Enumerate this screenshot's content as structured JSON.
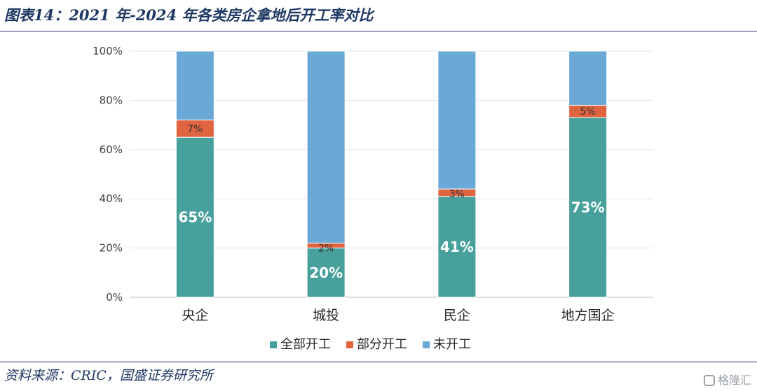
{
  "header": {
    "title": "图表14：2021 年-2024 年各类房企拿地后开工率对比"
  },
  "footer": {
    "source": "资料来源：CRIC，国盛证券研究所",
    "watermark": "格隆汇"
  },
  "colors": {
    "full": "#47a09b",
    "partial": "#e0643f",
    "none": "#6aa8d8"
  },
  "chart_data": {
    "type": "bar",
    "stacked": true,
    "categories": [
      "央企",
      "城投",
      "民企",
      "地方国企"
    ],
    "series": [
      {
        "name": "全部开工",
        "values": [
          65,
          20,
          41,
          73
        ],
        "labels": [
          "65%",
          "20%",
          "41%",
          "73%"
        ]
      },
      {
        "name": "部分开工",
        "values": [
          7,
          2,
          3,
          5
        ],
        "labels": [
          "7%",
          "2%",
          "3%",
          "5%"
        ]
      },
      {
        "name": "未开工",
        "values": [
          28,
          78,
          56,
          22
        ]
      }
    ],
    "ylim": [
      0,
      100
    ],
    "yticks": [
      "0%",
      "20%",
      "40%",
      "60%",
      "80%",
      "100%"
    ],
    "grid": true,
    "legend_position": "bottom"
  }
}
